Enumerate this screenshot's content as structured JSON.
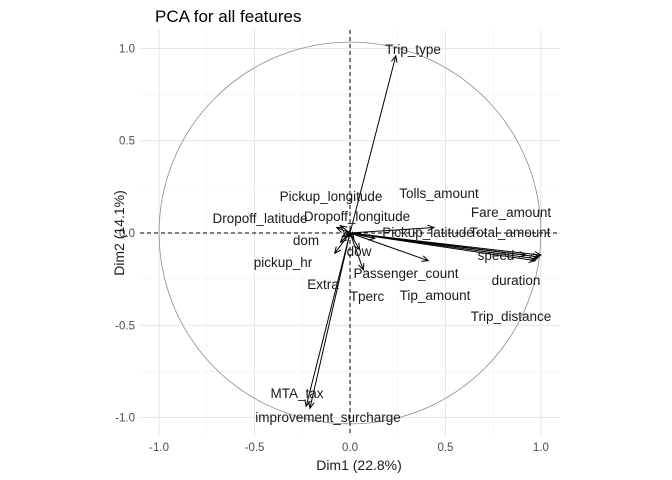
{
  "chart_data": {
    "type": "scatter",
    "subtype": "pca-correlation-circle",
    "title": "PCA for all features",
    "xlabel": "Dim1 (22.8%)",
    "ylabel": "Dim2 (14.1%)",
    "xlim": [
      -1.1,
      1.1
    ],
    "ylim": [
      -1.1,
      1.1
    ],
    "xticks": [
      {
        "value": -1.0,
        "label": "-1.0"
      },
      {
        "value": -0.5,
        "label": "-0.5"
      },
      {
        "value": 0.0,
        "label": "0.0"
      },
      {
        "value": 0.5,
        "label": "0.5"
      },
      {
        "value": 1.0,
        "label": "1.0"
      }
    ],
    "yticks": [
      {
        "value": -1.0,
        "label": "-1.0"
      },
      {
        "value": -0.5,
        "label": "-0.5"
      },
      {
        "value": 0.0,
        "label": "0.0"
      },
      {
        "value": 0.5,
        "label": "0.5"
      },
      {
        "value": 1.0,
        "label": "1.0"
      }
    ],
    "grid": true,
    "unit_circle": true,
    "colors": {
      "arrows": "#000000",
      "circle": "#8c8c8c",
      "grid_major": "#e6e6e6",
      "grid_minor": "#f2f2f2"
    },
    "variables": [
      {
        "name": "Trip_type",
        "x": 0.24,
        "y": 0.96
      },
      {
        "name": "Tolls_amount",
        "x": 0.44,
        "y": 0.03
      },
      {
        "name": "Fare_amount",
        "x": 0.99,
        "y": -0.13
      },
      {
        "name": "Total_amount",
        "x": 1.0,
        "y": -0.12
      },
      {
        "name": "speed",
        "x": 0.92,
        "y": -0.12
      },
      {
        "name": "duration",
        "x": 0.97,
        "y": -0.15
      },
      {
        "name": "Trip_distance",
        "x": 0.98,
        "y": -0.14
      },
      {
        "name": "Pickup_latitude",
        "x": 0.13,
        "y": -0.03
      },
      {
        "name": "Pickup_longitude",
        "x": -0.05,
        "y": 0.04
      },
      {
        "name": "Dropoff_longitude",
        "x": -0.07,
        "y": 0.03
      },
      {
        "name": "Dropoff_latitude",
        "x": -0.02,
        "y": -0.01
      },
      {
        "name": "dom",
        "x": -0.04,
        "y": -0.02
      },
      {
        "name": "dow",
        "x": 0.02,
        "y": -0.03
      },
      {
        "name": "pickup_hr",
        "x": -0.05,
        "y": -0.05
      },
      {
        "name": "Extra",
        "x": -0.08,
        "y": -0.11
      },
      {
        "name": "Passenger_count",
        "x": 0.05,
        "y": -0.09
      },
      {
        "name": "Tperc",
        "x": 0.07,
        "y": -0.2
      },
      {
        "name": "Tip_amount",
        "x": 0.41,
        "y": -0.15
      },
      {
        "name": "MTA_tax",
        "x": -0.23,
        "y": -0.94
      },
      {
        "name": "improvement_surcharge",
        "x": -0.21,
        "y": -0.95
      }
    ]
  }
}
